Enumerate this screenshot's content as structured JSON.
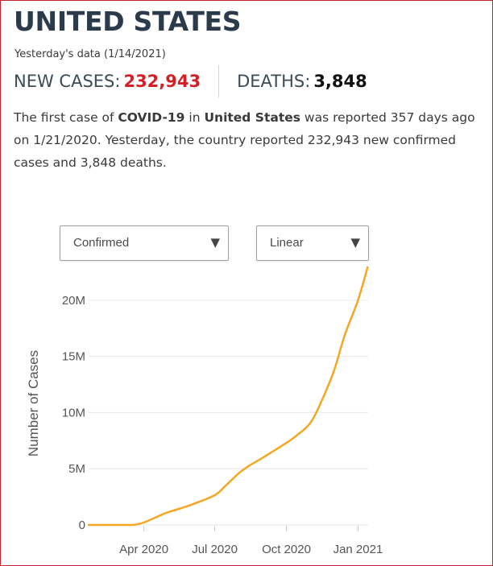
{
  "header": {
    "title": "UNITED STATES",
    "subtitle": "Yesterday's data (1/14/2021)"
  },
  "stats": {
    "new_cases_label": "NEW CASES:",
    "new_cases_value": "232,943",
    "deaths_label": "DEATHS:",
    "deaths_value": "3,848"
  },
  "description": {
    "part1": "The first case of ",
    "disease": "COVID-19",
    "part2": " in ",
    "country": "United States",
    "part3": " was reported 357 days ago on 1/21/2020. Yesterday, the country reported 232,943 new confirmed cases and 3,848 deaths."
  },
  "controls": {
    "metric_select": {
      "selected": "Confirmed",
      "arrow_icon": "caret-down-icon"
    },
    "scale_select": {
      "selected": "Linear",
      "arrow_icon": "caret-down-icon"
    }
  },
  "colors": {
    "accent_red": "#d41f26",
    "line_orange": "#f5a623",
    "title_navy": "#2c3b4c"
  },
  "chart_data": {
    "type": "line",
    "title": "",
    "xlabel": "",
    "ylabel": "Number of Cases",
    "x_range": [
      "2020-01-21",
      "2021-01-14"
    ],
    "ylim": [
      0,
      23000000
    ],
    "y_ticks": [
      {
        "value": 0,
        "label": "0"
      },
      {
        "value": 5000000,
        "label": "5M"
      },
      {
        "value": 10000000,
        "label": "10M"
      },
      {
        "value": 15000000,
        "label": "15M"
      },
      {
        "value": 20000000,
        "label": "20M"
      }
    ],
    "x_ticks": [
      {
        "date": "2020-04-01",
        "label": "Apr 2020"
      },
      {
        "date": "2020-07-01",
        "label": "Jul 2020"
      },
      {
        "date": "2020-10-01",
        "label": "Oct 2020"
      },
      {
        "date": "2021-01-01",
        "label": "Jan 2021"
      }
    ],
    "grid": {
      "horizontal": true,
      "vertical": false
    },
    "series": [
      {
        "color": "#f5a623",
        "points": [
          {
            "x": "2020-01-21",
            "y": 1
          },
          {
            "x": "2020-03-01",
            "y": 75
          },
          {
            "x": "2020-03-20",
            "y": 20000
          },
          {
            "x": "2020-04-01",
            "y": 215000
          },
          {
            "x": "2020-04-20",
            "y": 790000
          },
          {
            "x": "2020-05-01",
            "y": 1100000
          },
          {
            "x": "2020-06-01",
            "y": 1800000
          },
          {
            "x": "2020-07-01",
            "y": 2650000
          },
          {
            "x": "2020-07-15",
            "y": 3500000
          },
          {
            "x": "2020-08-01",
            "y": 4600000
          },
          {
            "x": "2020-08-15",
            "y": 5300000
          },
          {
            "x": "2020-09-01",
            "y": 6000000
          },
          {
            "x": "2020-10-01",
            "y": 7300000
          },
          {
            "x": "2020-10-15",
            "y": 8000000
          },
          {
            "x": "2020-11-01",
            "y": 9100000
          },
          {
            "x": "2020-11-15",
            "y": 11000000
          },
          {
            "x": "2020-12-01",
            "y": 13700000
          },
          {
            "x": "2020-12-15",
            "y": 16900000
          },
          {
            "x": "2021-01-01",
            "y": 20000000
          },
          {
            "x": "2021-01-14",
            "y": 23100000
          }
        ]
      }
    ]
  }
}
